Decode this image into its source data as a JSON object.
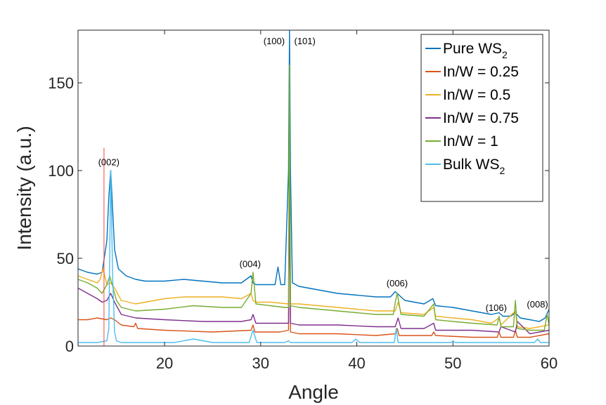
{
  "chart_data": {
    "type": "line",
    "title": "",
    "xlabel": "Angle",
    "ylabel": "Intensity (a.u.)",
    "xlim": [
      11,
      60
    ],
    "ylim": [
      0,
      180
    ],
    "xticks": [
      20,
      30,
      40,
      50,
      60
    ],
    "yticks": [
      0,
      50,
      100,
      150
    ],
    "grid": false,
    "legend_position": "top-right",
    "series": [
      {
        "name": "Pure WS2",
        "legend_main": "Pure WS",
        "legend_sub": "2",
        "color": "#0072BD",
        "x": [
          11,
          12,
          13,
          13.5,
          14.0,
          14.2,
          14.4,
          14.6,
          14.8,
          15.2,
          16,
          17,
          18,
          20,
          22,
          24,
          26,
          28,
          29.0,
          29.2,
          29.5,
          30,
          31.5,
          31.8,
          32.1,
          32.5,
          32.9,
          33.0,
          33.1,
          33.3,
          34,
          36,
          38,
          40,
          42,
          43.5,
          44.0,
          44.6,
          45,
          47,
          47.9,
          48.2,
          50,
          52,
          54,
          54.8,
          55.2,
          56,
          56.5,
          57,
          58,
          59,
          59.6,
          60
        ],
        "y": [
          44,
          42,
          41,
          42,
          60,
          85,
          100,
          78,
          55,
          44,
          40,
          38,
          37,
          37,
          38,
          37,
          36,
          36,
          40,
          36,
          35,
          35,
          35,
          45,
          35,
          35,
          100,
          180,
          100,
          36,
          34,
          32,
          30,
          29,
          28,
          28,
          31,
          28,
          26,
          24,
          27,
          23,
          22,
          20,
          18,
          19,
          17,
          17,
          19,
          16,
          15,
          14,
          16,
          21
        ]
      },
      {
        "name": "In/W = 0.25",
        "legend_main": "In/W = 0.25",
        "legend_sub": "",
        "color": "#D95319",
        "x": [
          11,
          12,
          13,
          14.0,
          14.4,
          14.8,
          15.5,
          16.8,
          17.0,
          17.2,
          20,
          25,
          29.0,
          29.2,
          29.4,
          32,
          32.9,
          33.0,
          33.1,
          34,
          38,
          42,
          44.0,
          44.2,
          44.4,
          47.8,
          48.0,
          48.2,
          52,
          54.6,
          54.8,
          55.0,
          56.3,
          56.5,
          56.7,
          58,
          60
        ],
        "y": [
          15,
          15,
          16,
          15,
          16,
          15,
          12,
          11,
          13,
          10,
          9,
          8,
          9,
          12,
          8,
          8,
          9,
          95,
          8,
          7,
          7,
          6,
          7,
          10,
          6,
          6,
          8,
          6,
          5,
          5,
          8,
          5,
          5,
          9,
          5,
          5,
          7
        ]
      },
      {
        "name": "In/W = 0.5",
        "legend_main": "In/W = 0.5",
        "legend_sub": "",
        "color": "#EDB120",
        "x": [
          11,
          12,
          13,
          13.3,
          13.6,
          14.0,
          14.4,
          14.8,
          15.5,
          17,
          18,
          20,
          22,
          24,
          26,
          28,
          29.0,
          29.2,
          29.5,
          31,
          32.9,
          33.0,
          33.1,
          34,
          36,
          38,
          40,
          42,
          44.0,
          44.3,
          44.6,
          47,
          48.0,
          48.2,
          50,
          52,
          54,
          54.8,
          55.0,
          56.5,
          56.7,
          58,
          60
        ],
        "y": [
          40,
          38,
          36,
          38,
          44,
          35,
          36,
          33,
          26,
          24,
          25,
          27,
          28,
          28,
          28,
          27,
          30,
          26,
          25,
          25,
          24,
          120,
          24,
          24,
          23,
          22,
          21,
          20,
          20,
          25,
          19,
          18,
          22,
          17,
          16,
          15,
          13,
          16,
          12,
          20,
          11,
          10,
          12
        ]
      },
      {
        "name": "In/W = 0.75",
        "legend_main": "In/W = 0.75",
        "legend_sub": "",
        "color": "#7E2F8E",
        "x": [
          11,
          12,
          13,
          13.5,
          14.0,
          14.4,
          14.8,
          15.5,
          17,
          20,
          24,
          28,
          29.0,
          29.2,
          29.5,
          32,
          32.9,
          33.0,
          33.1,
          34,
          38,
          42,
          44.0,
          44.3,
          44.6,
          47,
          48.0,
          48.2,
          52,
          54.8,
          55.0,
          56.5,
          56.7,
          58,
          60
        ],
        "y": [
          33,
          30,
          27,
          25,
          26,
          30,
          25,
          18,
          16,
          15,
          14,
          14,
          15,
          18,
          13,
          13,
          13,
          95,
          13,
          12,
          12,
          11,
          11,
          16,
          10,
          10,
          13,
          9,
          9,
          8,
          11,
          8,
          14,
          7,
          9
        ]
      },
      {
        "name": "In/W = 1",
        "legend_main": "In/W = 1",
        "legend_sub": "",
        "color": "#77AC30",
        "x": [
          11,
          12,
          13,
          13.5,
          14.0,
          14.3,
          14.6,
          15.0,
          15.5,
          17,
          20,
          23,
          26,
          28,
          29.0,
          29.2,
          29.5,
          31,
          32.5,
          32.9,
          33.0,
          33.1,
          34,
          36,
          38,
          40,
          42,
          43.8,
          44.0,
          44.2,
          44.6,
          47,
          48.0,
          48.2,
          50,
          52,
          54.6,
          54.8,
          55.0,
          56.3,
          56.5,
          56.7,
          58,
          59.5,
          59.8,
          60
        ],
        "y": [
          38,
          36,
          33,
          30,
          35,
          40,
          34,
          26,
          22,
          20,
          21,
          23,
          22,
          22,
          30,
          42,
          24,
          23,
          22,
          22,
          160,
          23,
          22,
          21,
          20,
          19,
          18,
          18,
          25,
          30,
          18,
          17,
          24,
          15,
          14,
          13,
          12,
          17,
          11,
          11,
          26,
          10,
          9,
          9,
          18,
          12
        ]
      },
      {
        "name": "Bulk WS2",
        "legend_main": "Bulk WS",
        "legend_sub": "2",
        "color": "#4DBEEE",
        "x": [
          11,
          13,
          14.0,
          14.2,
          14.4,
          14.6,
          14.8,
          15.0,
          15.5,
          18,
          21,
          23,
          25,
          28.8,
          29.2,
          29.6,
          32.5,
          32.9,
          33.1,
          33.5,
          36,
          39.5,
          39.9,
          40.3,
          43.9,
          44.1,
          44.3,
          47,
          49.8,
          50.0,
          50.2,
          55,
          58.5,
          58.8,
          59.1,
          60
        ],
        "y": [
          2,
          2,
          3,
          10,
          100,
          40,
          8,
          3,
          2,
          2,
          2,
          4,
          2,
          2,
          9,
          2,
          2,
          3,
          2,
          2,
          2,
          2,
          4,
          2,
          2,
          10,
          2,
          2,
          2,
          3,
          2,
          2,
          2,
          4,
          2,
          2
        ]
      }
    ],
    "reference_line": {
      "x": 13.7,
      "y_top": 113,
      "color": "#FF4040"
    },
    "annotations": [
      {
        "text": "(002)",
        "x": 14.2,
        "y": 103
      },
      {
        "text": "(100)",
        "x": 31.4,
        "y": 172
      },
      {
        "text": "(101)",
        "x": 34.6,
        "y": 172
      },
      {
        "text": "(004)",
        "x": 28.9,
        "y": 45
      },
      {
        "text": "(006)",
        "x": 44.2,
        "y": 34
      },
      {
        "text": "(106)",
        "x": 54.5,
        "y": 20
      },
      {
        "text": "(008)",
        "x": 58.8,
        "y": 22
      }
    ]
  }
}
